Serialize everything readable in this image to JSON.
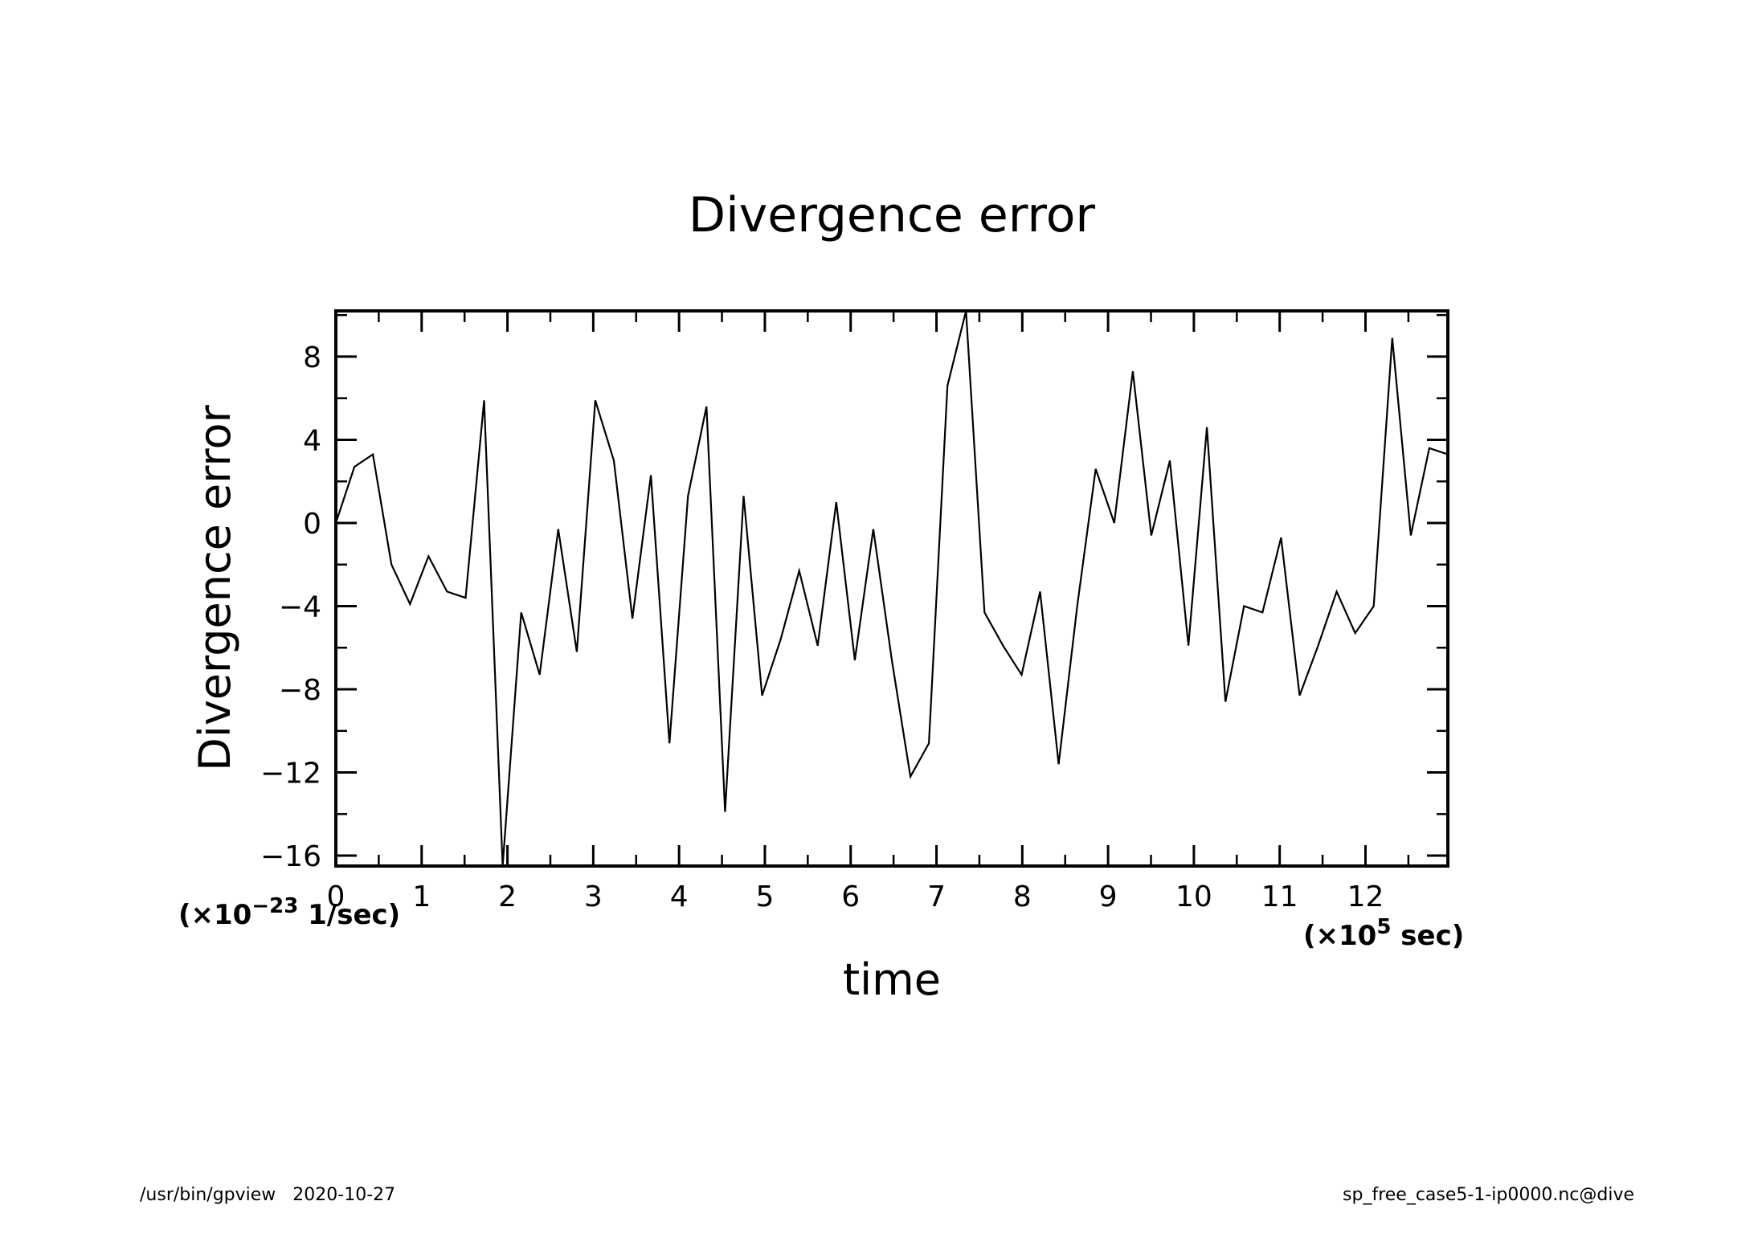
{
  "chart_data": {
    "type": "line",
    "title": "Divergence error",
    "xlabel": "time",
    "ylabel": "Divergence error",
    "x_unit_prefix": "(×10",
    "x_unit_exp": "5",
    "x_unit_suffix": " sec)",
    "y_unit_prefix": "(×10",
    "y_unit_exp": "−23",
    "y_unit_suffix": " 1/sec)",
    "xlim": [
      0,
      12.96
    ],
    "ylim": [
      -16.5,
      10.2
    ],
    "x_ticks": [
      0,
      1,
      2,
      3,
      4,
      5,
      6,
      7,
      8,
      9,
      10,
      11,
      12
    ],
    "x_tick_labels": [
      "0",
      "1",
      "2",
      "3",
      "4",
      "5",
      "6",
      "7",
      "8",
      "9",
      "10",
      "11",
      "12"
    ],
    "y_ticks": [
      -16,
      -12,
      -8,
      -4,
      0,
      4,
      8
    ],
    "y_tick_labels": [
      "−16",
      "−12",
      "−8",
      "−4",
      "0",
      "4",
      "8"
    ],
    "grid": false,
    "series": [
      {
        "x": [
          0,
          0.216,
          0.432,
          0.648,
          0.864,
          1.08,
          1.296,
          1.512,
          1.728,
          1.944,
          2.16,
          2.376,
          2.592,
          2.808,
          3.024,
          3.24,
          3.456,
          3.672,
          3.888,
          4.104,
          4.32,
          4.536,
          4.752,
          4.968,
          5.184,
          5.4,
          5.616,
          5.832,
          6.048,
          6.264,
          6.48,
          6.696,
          6.912,
          7.128,
          7.344,
          7.56,
          7.776,
          7.992,
          8.208,
          8.424,
          8.64,
          8.856,
          9.072,
          9.288,
          9.504,
          9.72,
          9.936,
          10.152,
          10.368,
          10.584,
          10.8,
          11.016,
          11.232,
          11.448,
          11.664,
          11.88,
          12.096,
          12.312,
          12.528,
          12.744,
          12.96
        ],
        "y": [
          0,
          2.7,
          3.3,
          -2,
          -3.9,
          -1.6,
          -3.3,
          -3.6,
          5.9,
          -16.5,
          -4.3,
          -7.3,
          -0.3,
          -6.2,
          5.9,
          3,
          -4.6,
          2.3,
          -10.6,
          1.3,
          5.6,
          -13.9,
          1.3,
          -8.3,
          -5.6,
          -2.3,
          -5.9,
          1,
          -6.6,
          -0.3,
          -6.6,
          -12.2,
          -10.6,
          6.6,
          10.2,
          -4.3,
          -5.9,
          -7.3,
          -3.3,
          -11.6,
          -4,
          2.6,
          0,
          7.3,
          -0.6,
          3,
          -5.9,
          4.6,
          -8.6,
          -4,
          -4.3,
          -0.7,
          -8.3,
          -5.9,
          -3.3,
          -5.3,
          -4,
          8.9,
          -0.6,
          3.6,
          3.3
        ]
      }
    ]
  },
  "footer": {
    "left": "/usr/bin/gpview   2020-10-27",
    "right": "sp_free_case5-1-ip0000.nc@dive"
  }
}
